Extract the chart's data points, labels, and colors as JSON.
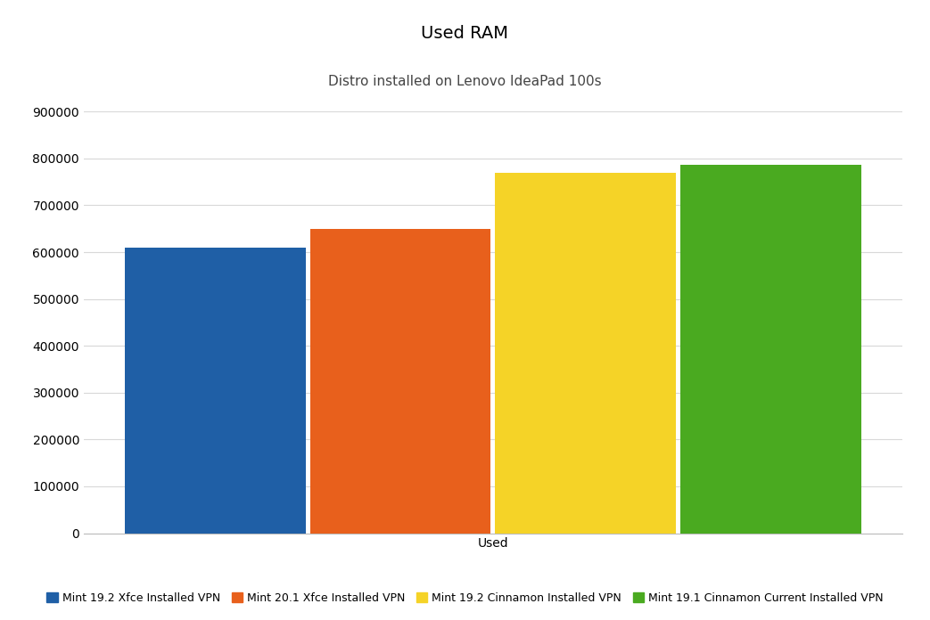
{
  "title": "Used RAM",
  "subtitle": "Distro installed on Lenovo IdeaPad 100s",
  "xlabel": "Used",
  "ylabel": "",
  "series": [
    {
      "label": "Mint 19.2 Xfce Installed VPN",
      "value": 610000,
      "color": "#1f5fa6"
    },
    {
      "label": "Mint 20.1 Xfce Installed VPN",
      "value": 650000,
      "color": "#e8601c"
    },
    {
      "label": "Mint 19.2 Cinnamon Installed VPN",
      "value": 770000,
      "color": "#f5d327"
    },
    {
      "label": "Mint 19.1 Cinnamon Current Installed VPN",
      "value": 786000,
      "color": "#4aaa20"
    }
  ],
  "ylim": [
    0,
    900000
  ],
  "yticks": [
    0,
    100000,
    200000,
    300000,
    400000,
    500000,
    600000,
    700000,
    800000,
    900000
  ],
  "bar_width": 0.22,
  "bar_gap": 0.005,
  "background_color": "#ffffff",
  "grid_color": "#d8d8d8",
  "title_fontsize": 14,
  "subtitle_fontsize": 11,
  "tick_fontsize": 10,
  "legend_fontsize": 9
}
